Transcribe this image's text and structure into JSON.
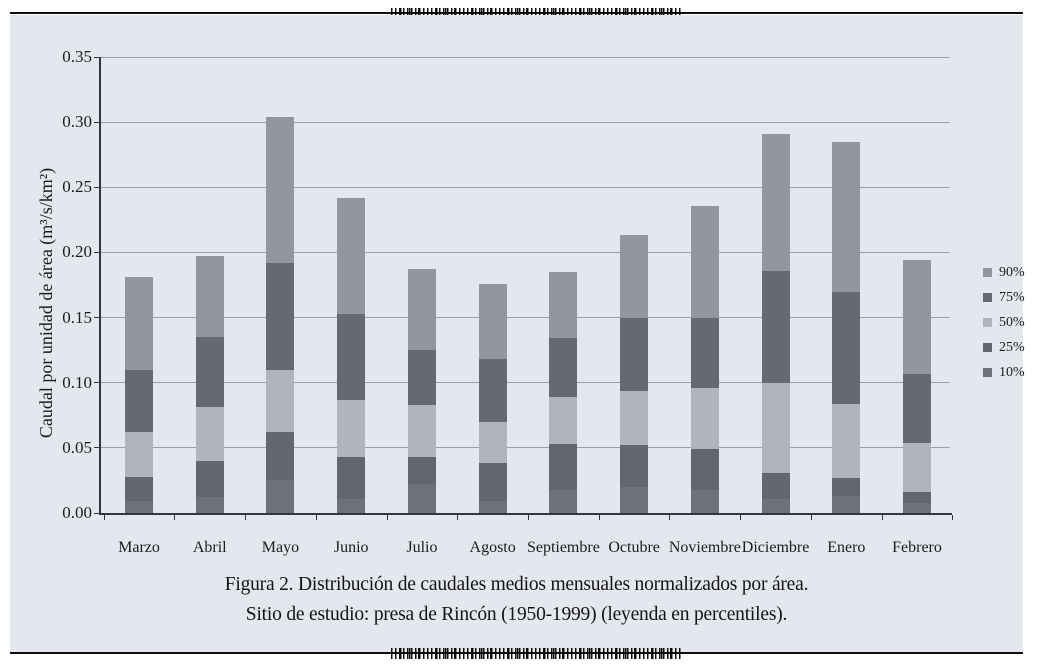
{
  "figure": {
    "caption_line1": "Figura 2. Distribución de caudales medios mensuales normalizados por área.",
    "caption_line2": "Sitio de estudio: presa de Rincón (1950-1999) (leyenda en percentiles)."
  },
  "colors": {
    "panel_background": "#e4e7ee",
    "gridline": "#999fa8",
    "axis": "#33363c",
    "rule": "#0d0d0d"
  },
  "chart_data": {
    "type": "bar",
    "stacked": true,
    "title": "",
    "xlabel": "",
    "ylabel": "Caudal por unidad de área (m³/s/km²)",
    "ylim": [
      0,
      0.35
    ],
    "ytick_step": 0.05,
    "yticks": [
      "0.00",
      "0.05",
      "0.10",
      "0.15",
      "0.20",
      "0.25",
      "0.30",
      "0.35"
    ],
    "grid": true,
    "legend_position": "right",
    "legend_note": "leyenda en percentiles",
    "categories": [
      "Marzo",
      "Abril",
      "Mayo",
      "Junio",
      "Julio",
      "Agosto",
      "Septiembre",
      "Octubre",
      "Noviembre",
      "Diciembre",
      "Enero",
      "Febrero"
    ],
    "percentile_series": [
      {
        "name": "10%",
        "color": "#6e7179",
        "values": [
          0.009,
          0.012,
          0.025,
          0.011,
          0.022,
          0.009,
          0.018,
          0.02,
          0.018,
          0.011,
          0.013,
          0.008
        ]
      },
      {
        "name": "25%",
        "color": "#63666e",
        "values": [
          0.028,
          0.04,
          0.062,
          0.043,
          0.043,
          0.038,
          0.053,
          0.052,
          0.049,
          0.031,
          0.027,
          0.016
        ]
      },
      {
        "name": "50%",
        "color": "#b1b4bb",
        "values": [
          0.062,
          0.081,
          0.11,
          0.087,
          0.083,
          0.07,
          0.089,
          0.094,
          0.096,
          0.1,
          0.084,
          0.054
        ]
      },
      {
        "name": "75%",
        "color": "#666973",
        "values": [
          0.11,
          0.135,
          0.192,
          0.153,
          0.125,
          0.118,
          0.134,
          0.15,
          0.15,
          0.186,
          0.17,
          0.107
        ]
      },
      {
        "name": "90%",
        "color": "#92969f",
        "values": [
          0.181,
          0.197,
          0.304,
          0.242,
          0.187,
          0.176,
          0.185,
          0.213,
          0.236,
          0.291,
          0.285,
          0.194
        ]
      }
    ],
    "series_note": "values are cumulative percentile levels; each stacked segment spans from the previous percentile up to its own value"
  }
}
